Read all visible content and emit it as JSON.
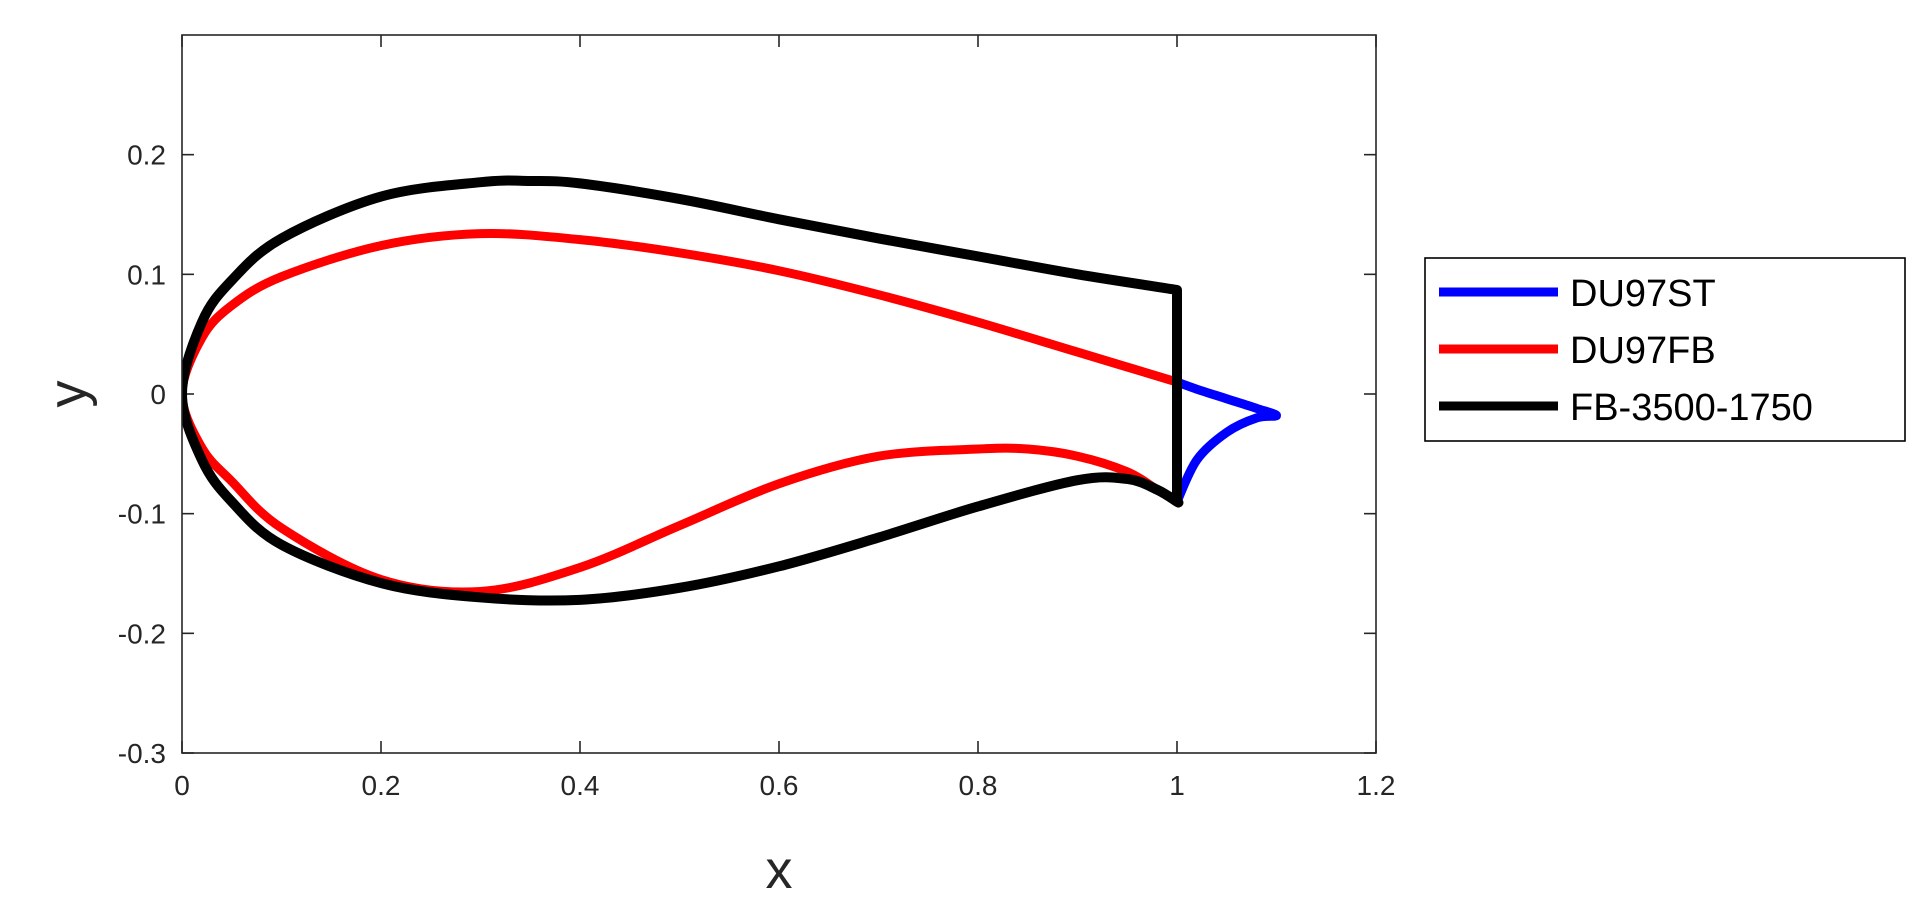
{
  "chart_data": {
    "type": "line",
    "title": "",
    "xlabel": "x",
    "ylabel": "y",
    "xlim": [
      0,
      1.2
    ],
    "ylim": [
      -0.3,
      0.3
    ],
    "xticks": [
      0,
      0.2,
      0.4,
      0.6,
      0.8,
      1,
      1.2
    ],
    "xtick_labels": [
      "0",
      "0.2",
      "0.4",
      "0.6",
      "0.8",
      "1",
      "1.2"
    ],
    "yticks": [
      -0.3,
      -0.2,
      -0.1,
      0,
      0.1,
      0.2
    ],
    "ytick_labels": [
      "-0.3",
      "-0.2",
      "-0.1",
      "0",
      "0.1",
      "0.2"
    ],
    "grid": false,
    "legend_position": "outside-right",
    "series": [
      {
        "name": "DU97ST",
        "color": "#0000ff",
        "x": [
          1.0,
          1.02,
          1.05,
          1.08,
          1.1,
          1.08,
          1.05,
          1.02,
          1.0
        ],
        "y": [
          0.01,
          0.004,
          -0.004,
          -0.012,
          -0.018,
          -0.02,
          -0.032,
          -0.055,
          -0.09
        ]
      },
      {
        "name": "DU97FB",
        "color": "#ff0000",
        "x": [
          1.0,
          0.9,
          0.8,
          0.7,
          0.6,
          0.5,
          0.4,
          0.3,
          0.2,
          0.1,
          0.05,
          0.02,
          0.0,
          0.02,
          0.05,
          0.1,
          0.2,
          0.3,
          0.4,
          0.5,
          0.6,
          0.7,
          0.8,
          0.85,
          0.9,
          0.95,
          0.98,
          1.0
        ],
        "y": [
          0.01,
          0.035,
          0.06,
          0.083,
          0.103,
          0.118,
          0.129,
          0.134,
          0.124,
          0.098,
          0.074,
          0.047,
          0.0,
          -0.045,
          -0.073,
          -0.112,
          -0.155,
          -0.165,
          -0.145,
          -0.11,
          -0.075,
          -0.052,
          -0.046,
          -0.046,
          -0.052,
          -0.065,
          -0.08,
          -0.09
        ]
      },
      {
        "name": "FB-3500-1750",
        "color": "#000000",
        "x": [
          1.0,
          1.0,
          0.9,
          0.8,
          0.7,
          0.6,
          0.5,
          0.4,
          0.35,
          0.3,
          0.2,
          0.1,
          0.05,
          0.02,
          0.0,
          0.02,
          0.05,
          0.1,
          0.2,
          0.3,
          0.4,
          0.5,
          0.6,
          0.7,
          0.8,
          0.9,
          0.95,
          0.98,
          1.0,
          1.0
        ],
        "y": [
          -0.09,
          0.087,
          0.1,
          0.115,
          0.13,
          0.146,
          0.163,
          0.176,
          0.178,
          0.177,
          0.165,
          0.13,
          0.095,
          0.06,
          0.0,
          -0.055,
          -0.09,
          -0.126,
          -0.158,
          -0.17,
          -0.172,
          -0.162,
          -0.144,
          -0.12,
          -0.094,
          -0.072,
          -0.071,
          -0.08,
          -0.09,
          -0.09
        ]
      }
    ]
  }
}
